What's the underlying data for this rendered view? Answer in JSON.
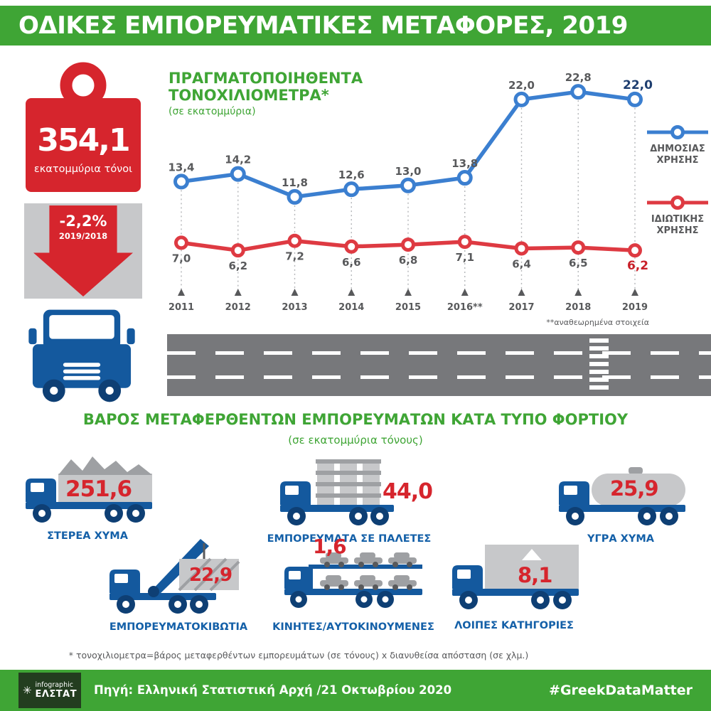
{
  "colors": {
    "green": "#3FA535",
    "red": "#D6252D",
    "truck_blue": "#14599E",
    "label_blue": "#1460A8",
    "chart_blue": "#3B7FD0",
    "chart_red": "#DE3A42",
    "load_gray": "#C7C8CA",
    "road_gray": "#77787B",
    "text_gray": "#58595B"
  },
  "header": {
    "title": "ΟΔΙΚΕΣ ΕΜΠΟΡΕΥΜΑΤΙΚΕΣ ΜΕΤΑΦΟΡΕΣ, 2019"
  },
  "summary": {
    "total_value": "354,1",
    "total_unit": "εκατομμύρια τόνοι",
    "change_value": "-2,2%",
    "change_period": "2019/2018"
  },
  "chart": {
    "title_line1": "ΠΡΑΓΜΑΤΟΠΟΙΗΘΕΝΤΑ",
    "title_line2": "ΤΟΝΟΧΙΛΙΟΜΕΤΡΑ*",
    "subtitle": "(σε εκατομμύρια)",
    "revision_note": "**αναθεωρημένα στοιχεία",
    "legend": [
      {
        "line1": "ΔΗΜΟΣΙΑΣ",
        "line2": "ΧΡΗΣΗΣ"
      },
      {
        "line1": "ΙΔΙΩΤΙΚΗΣ",
        "line2": "ΧΡΗΣΗΣ"
      }
    ]
  },
  "chart_data": {
    "type": "line",
    "categories": [
      "2011",
      "2012",
      "2013",
      "2014",
      "2015",
      "2016**",
      "2017",
      "2018",
      "2019"
    ],
    "series": [
      {
        "name": "ΔΗΜΟΣΙΑΣ ΧΡΗΣΗΣ",
        "color": "#3B7FD0",
        "values": [
          13.4,
          14.2,
          11.8,
          12.6,
          13.0,
          13.8,
          22.0,
          22.8,
          22.0
        ],
        "labels": [
          "13,4",
          "14,2",
          "11,8",
          "12,6",
          "13,0",
          "13,8",
          "22,0",
          "22,8",
          "22,0"
        ]
      },
      {
        "name": "ΙΔΙΩΤΙΚΗΣ ΧΡΗΣΗΣ",
        "color": "#DE3A42",
        "values": [
          7.0,
          6.2,
          7.2,
          6.6,
          6.8,
          7.1,
          6.4,
          6.5,
          6.2
        ],
        "labels": [
          "7,0",
          "6,2",
          "7,2",
          "6,6",
          "6,8",
          "7,1",
          "6,4",
          "6,5",
          "6,2"
        ]
      }
    ],
    "ylim": [
      0,
      25
    ],
    "grid": false,
    "legend_position": "right"
  },
  "cargo": {
    "title": "ΒΑΡΟΣ ΜΕΤΑΦΕΡΘΕΝΤΩΝ ΕΜΠΟΡΕΥΜΑΤΩΝ ΚΑΤΑ ΤΥΠΟ ΦΟΡΤΙΟΥ",
    "subtitle": "(σε εκατομμύρια τόνους)",
    "items": [
      {
        "label": "ΣΤΕΡΕΑ ΧΥΜΑ",
        "value": "251,6"
      },
      {
        "label": "ΕΜΠΟΡΕΥΜΑΤΑ ΣΕ ΠΑΛΕΤΕΣ",
        "value": "44,0"
      },
      {
        "label": "ΥΓΡΑ ΧΥΜΑ",
        "value": "25,9"
      },
      {
        "label": "ΕΜΠΟΡΕΥΜΑΤΟΚΙΒΩΤΙΑ",
        "value": "22,9"
      },
      {
        "label": "ΚΙΝΗΤΕΣ/ΑΥΤΟΚΙΝΟΥΜΕΝΕΣ",
        "value": "1,6"
      },
      {
        "label": "ΛΟΙΠΕΣ ΚΑΤΗΓΟΡΙΕΣ",
        "value": "8,1"
      }
    ]
  },
  "footnote": "* τονοχιλιομετρα=βάρος μεταφερθέντων εμπορευμάτων (σε τόνους) x διανυθείσα απόσταση (σε χλμ.)",
  "footer": {
    "logo_top": "infographic",
    "logo_bottom": "ΕΛΣΤΑΤ",
    "source": "Πηγή: Ελληνική Στατιστική Αρχή /21 Οκτωβρίου 2020",
    "hashtag": "#GreekDataMatter"
  }
}
